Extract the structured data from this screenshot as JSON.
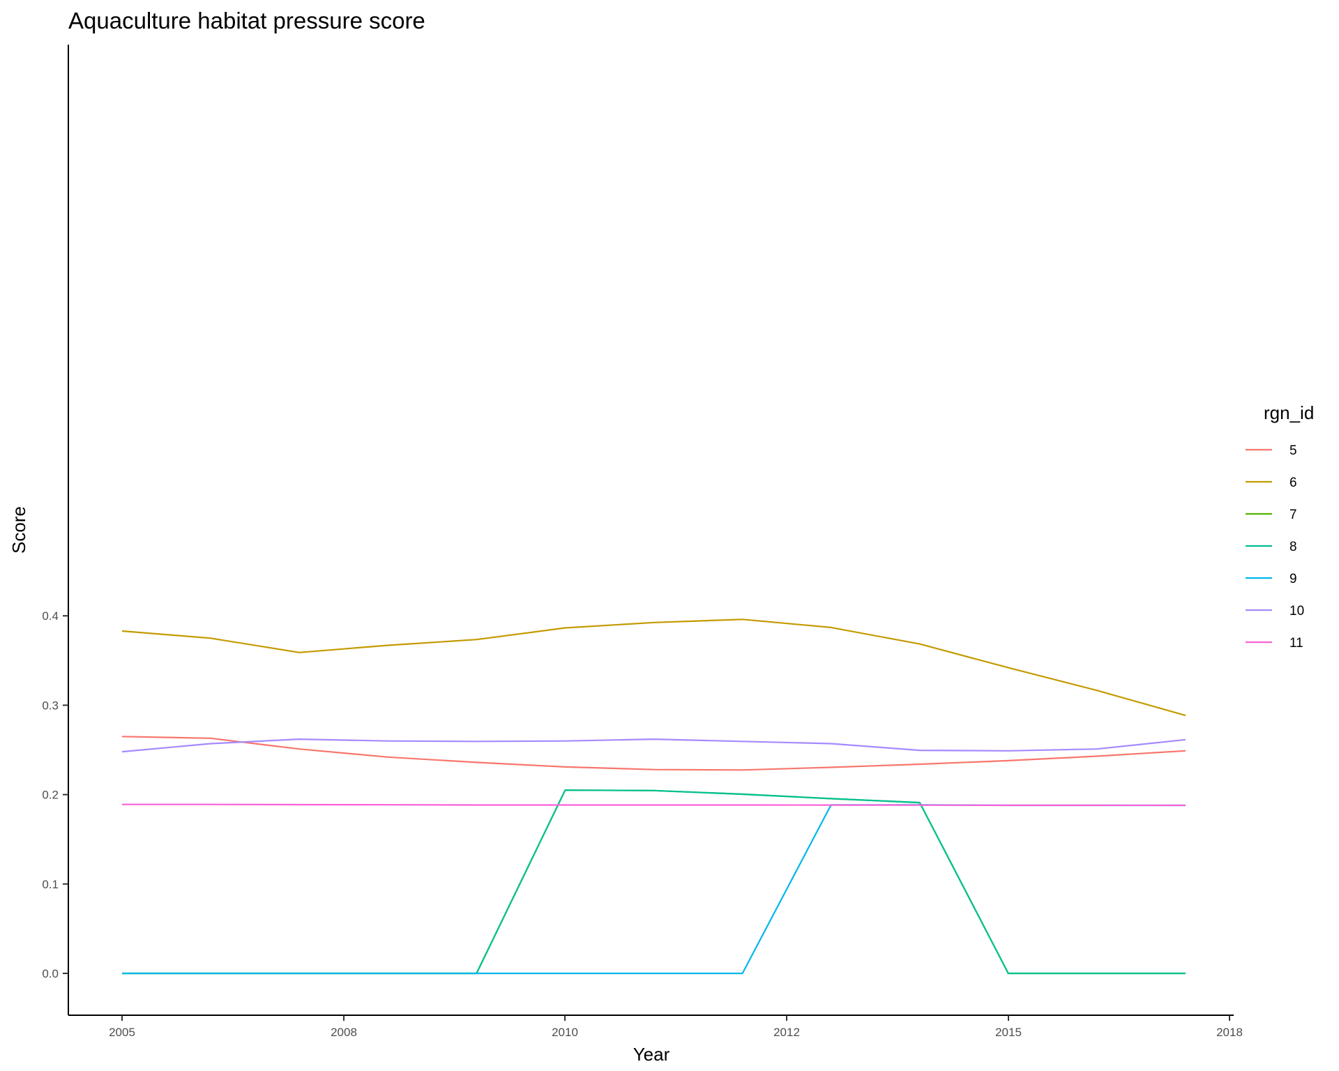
{
  "chart_data": {
    "type": "line",
    "title": "Aquaculture habitat pressure score",
    "xlabel": "Year",
    "ylabel": "Score",
    "x_ticks": [
      "2005",
      "2008",
      "2010",
      "2012",
      "2015",
      "2018"
    ],
    "y_ticks": [
      "0.0",
      "0.1",
      "0.2",
      "0.3",
      "0.4"
    ],
    "ylim": [
      -0.02,
      0.415
    ],
    "legend_title": "rgn_id",
    "legend_position": "right",
    "grid": false,
    "series": [
      {
        "name": "5",
        "color": "#F8766D",
        "values": [
          0.265,
          0.263,
          0.251,
          0.242,
          0.236,
          0.231,
          0.228,
          0.2275,
          0.2305,
          0.234,
          0.238,
          0.243,
          0.249
        ]
      },
      {
        "name": "6",
        "color": "#C49A00",
        "values": [
          0.383,
          0.375,
          0.359,
          0.367,
          0.3735,
          0.3865,
          0.3925,
          0.396,
          0.387,
          0.3685,
          0.342,
          0.3165,
          0.2885
        ]
      },
      {
        "name": "7",
        "color": "#53B400",
        "values": [
          0,
          0,
          0,
          0,
          0,
          0.205,
          0.2045,
          0.2005,
          0.1955,
          0.191,
          0,
          0,
          0
        ]
      },
      {
        "name": "8",
        "color": "#00C094",
        "values": [
          0,
          0,
          0,
          0,
          0,
          0.205,
          0.2045,
          0.2005,
          0.1955,
          0.191,
          0,
          0,
          0
        ]
      },
      {
        "name": "9",
        "color": "#00B6EB",
        "values": [
          0,
          0,
          0,
          0,
          0,
          0,
          0,
          0,
          0.1885,
          0.1885,
          0.188,
          0.188,
          0.188
        ]
      },
      {
        "name": "10",
        "color": "#A58AFF",
        "values": [
          0.248,
          0.257,
          0.262,
          0.26,
          0.2595,
          0.26,
          0.262,
          0.2595,
          0.257,
          0.2495,
          0.249,
          0.251,
          0.2615
        ]
      },
      {
        "name": "11",
        "color": "#FB61D7",
        "values": [
          0.189,
          0.189,
          0.1888,
          0.1886,
          0.1884,
          0.1884,
          0.1884,
          0.1884,
          0.1883,
          0.1882,
          0.1881,
          0.1881,
          0.188
        ]
      }
    ]
  }
}
